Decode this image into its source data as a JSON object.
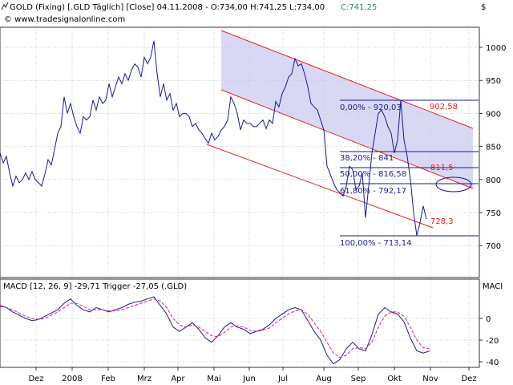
{
  "header": {
    "symbol_icon": "chart-line-icon",
    "title": "GOLD (Fixing) [.GLD  Täglich] [Close] 04.11.2008 - O:734,00 H:741,25 L:734,00",
    "close_label": "C:741,25",
    "website": "© www.tradesignalonline.com",
    "currency": "$",
    "close_color": "#2e8b57"
  },
  "chart_data": [
    {
      "type": "line",
      "name": "price-panel",
      "x_ticks": [
        "Dez",
        "2008",
        "Feb",
        "Mrz",
        "Apr",
        "Mai",
        "Jun",
        "Jul",
        "Aug",
        "Sep",
        "Okt",
        "Nov",
        "Dez"
      ],
      "y_ticks": [
        1000,
        950,
        900,
        850,
        800,
        750,
        700
      ],
      "ylim": [
        680,
        1040
      ],
      "grid": true,
      "line_color": "#1a1a8c",
      "channel_color": "#e62020",
      "fill_color": "#c8c8f0",
      "fib_color": "#1a1a8c",
      "series": [
        {
          "values": [
            [
              0,
              840
            ],
            [
              4,
              825
            ],
            [
              8,
              835
            ],
            [
              12,
              810
            ],
            [
              16,
              790
            ],
            [
              20,
              805
            ],
            [
              24,
              795
            ],
            [
              28,
              800
            ],
            [
              32,
              810
            ],
            [
              36,
              800
            ],
            [
              40,
              812
            ],
            [
              44,
              800
            ],
            [
              48,
              795
            ],
            [
              52,
              790
            ],
            [
              56,
              808
            ],
            [
              60,
              830
            ],
            [
              64,
              822
            ],
            [
              68,
              845
            ],
            [
              72,
              870
            ],
            [
              76,
              880
            ],
            [
              80,
              925
            ],
            [
              84,
              900
            ],
            [
              88,
              915
            ],
            [
              92,
              895
            ],
            [
              96,
              880
            ],
            [
              100,
              870
            ],
            [
              104,
              895
            ],
            [
              108,
              890
            ],
            [
              112,
              895
            ],
            [
              116,
              920
            ],
            [
              120,
              905
            ],
            [
              124,
              925
            ],
            [
              128,
              915
            ],
            [
              132,
              920
            ],
            [
              136,
              945
            ],
            [
              140,
              925
            ],
            [
              144,
              940
            ],
            [
              148,
              955
            ],
            [
              152,
              945
            ],
            [
              156,
              960
            ],
            [
              160,
              950
            ],
            [
              164,
              965
            ],
            [
              168,
              975
            ],
            [
              172,
              970
            ],
            [
              176,
              955
            ],
            [
              180,
              985
            ],
            [
              184,
              975
            ],
            [
              188,
              985
            ],
            [
              192,
              1010
            ],
            [
              196,
              960
            ],
            [
              200,
              925
            ],
            [
              204,
              945
            ],
            [
              208,
              920
            ],
            [
              212,
              930
            ],
            [
              216,
              905
            ],
            [
              220,
              915
            ],
            [
              224,
              895
            ],
            [
              228,
              900
            ],
            [
              232,
              900
            ],
            [
              236,
              895
            ],
            [
              240,
              880
            ],
            [
              244,
              885
            ],
            [
              248,
              875
            ],
            [
              252,
              870
            ],
            [
              256,
              862
            ],
            [
              260,
              855
            ],
            [
              264,
              870
            ],
            [
              268,
              860
            ],
            [
              272,
              865
            ],
            [
              276,
              875
            ],
            [
              280,
              880
            ],
            [
              284,
              890
            ],
            [
              288,
              925
            ],
            [
              292,
              915
            ],
            [
              296,
              900
            ],
            [
              300,
              875
            ],
            [
              304,
              890
            ],
            [
              308,
              885
            ],
            [
              312,
              885
            ],
            [
              316,
              880
            ],
            [
              320,
              880
            ],
            [
              324,
              885
            ],
            [
              328,
              890
            ],
            [
              332,
              877
            ],
            [
              336,
              890
            ],
            [
              340,
              885
            ],
            [
              344,
              918
            ],
            [
              348,
              910
            ],
            [
              352,
              930
            ],
            [
              356,
              940
            ],
            [
              360,
              955
            ],
            [
              364,
              960
            ],
            [
              368,
              983
            ],
            [
              372,
              972
            ],
            [
              376,
              975
            ],
            [
              380,
              960
            ],
            [
              384,
              940
            ],
            [
              388,
              915
            ],
            [
              392,
              910
            ],
            [
              396,
              905
            ],
            [
              400,
              890
            ],
            [
              404,
              875
            ],
            [
              408,
              820
            ],
            [
              412,
              808
            ],
            [
              416,
              795
            ],
            [
              420,
              785
            ],
            [
              424,
              780
            ],
            [
              428,
              775
            ],
            [
              432,
              790
            ],
            [
              436,
              820
            ],
            [
              440,
              815
            ],
            [
              444,
              785
            ],
            [
              448,
              790
            ],
            [
              452,
              810
            ],
            [
              456,
              742
            ],
            [
              460,
              790
            ],
            [
              464,
              840
            ],
            [
              468,
              870
            ],
            [
              472,
              900
            ],
            [
              476,
              905
            ],
            [
              480,
              895
            ],
            [
              484,
              880
            ],
            [
              488,
              870
            ],
            [
              492,
              840
            ],
            [
              496,
              860
            ],
            [
              500,
              920
            ],
            [
              504,
              860
            ],
            [
              508,
              835
            ],
            [
              512,
              800
            ],
            [
              516,
              750
            ],
            [
              520,
              715
            ],
            [
              524,
              735
            ],
            [
              528,
              760
            ],
            [
              532,
              740
            ]
          ]
        }
      ],
      "fib_levels": [
        {
          "label": "0,00% - 920,03",
          "value": 920.03
        },
        {
          "label": "38,20% - 841",
          "value": 841
        },
        {
          "label": "50,00% - 816,58",
          "value": 816.58
        },
        {
          "label": "61,80% - 792,17",
          "value": 792.17
        },
        {
          "label": "100,00% - 713,14",
          "value": 713.14
        }
      ],
      "channel_labels": [
        {
          "label": "902,58",
          "value": 902.58
        },
        {
          "label": "811,5",
          "value": 811.5
        },
        {
          "label": "728,3",
          "value": 728.3
        }
      ]
    },
    {
      "type": "line",
      "name": "macd-panel",
      "title": "MACD [12, 26, 9] -29,71 Trigger -27,05 (.GLD)",
      "right_label": "MACI",
      "y_ticks": [
        0,
        -20,
        -40
      ],
      "ylim": [
        -48,
        22
      ],
      "grid": true,
      "series": [
        {
          "name": "MACD",
          "color": "#1a1a8c",
          "values": [
            [
              0,
              12
            ],
            [
              8,
              10
            ],
            [
              16,
              6
            ],
            [
              24,
              3
            ],
            [
              32,
              0
            ],
            [
              40,
              -2
            ],
            [
              48,
              -1
            ],
            [
              56,
              2
            ],
            [
              64,
              5
            ],
            [
              72,
              8
            ],
            [
              80,
              14
            ],
            [
              88,
              18
            ],
            [
              96,
              12
            ],
            [
              104,
              8
            ],
            [
              112,
              6
            ],
            [
              120,
              10
            ],
            [
              128,
              8
            ],
            [
              136,
              6
            ],
            [
              144,
              8
            ],
            [
              152,
              10
            ],
            [
              160,
              13
            ],
            [
              168,
              15
            ],
            [
              176,
              16
            ],
            [
              184,
              18
            ],
            [
              192,
              20
            ],
            [
              200,
              12
            ],
            [
              208,
              4
            ],
            [
              216,
              -8
            ],
            [
              224,
              -12
            ],
            [
              232,
              -8
            ],
            [
              240,
              -4
            ],
            [
              248,
              -10
            ],
            [
              256,
              -18
            ],
            [
              264,
              -22
            ],
            [
              272,
              -16
            ],
            [
              280,
              -8
            ],
            [
              288,
              -4
            ],
            [
              296,
              -8
            ],
            [
              304,
              -10
            ],
            [
              312,
              -14
            ],
            [
              320,
              -12
            ],
            [
              328,
              -10
            ],
            [
              336,
              -6
            ],
            [
              344,
              0
            ],
            [
              352,
              4
            ],
            [
              360,
              8
            ],
            [
              368,
              10
            ],
            [
              376,
              8
            ],
            [
              384,
              -2
            ],
            [
              392,
              -12
            ],
            [
              400,
              -20
            ],
            [
              408,
              -34
            ],
            [
              416,
              -42
            ],
            [
              424,
              -38
            ],
            [
              432,
              -28
            ],
            [
              440,
              -22
            ],
            [
              448,
              -28
            ],
            [
              456,
              -30
            ],
            [
              464,
              -15
            ],
            [
              472,
              4
            ],
            [
              480,
              10
            ],
            [
              488,
              6
            ],
            [
              496,
              4
            ],
            [
              504,
              -3
            ],
            [
              512,
              -18
            ],
            [
              520,
              -30
            ],
            [
              528,
              -32
            ],
            [
              536,
              -30
            ]
          ]
        },
        {
          "name": "Trigger",
          "color": "#cc2288",
          "values": [
            [
              0,
              11
            ],
            [
              8,
              10
            ],
            [
              16,
              8
            ],
            [
              24,
              5
            ],
            [
              32,
              2
            ],
            [
              40,
              0
            ],
            [
              48,
              -1
            ],
            [
              56,
              0
            ],
            [
              64,
              3
            ],
            [
              72,
              6
            ],
            [
              80,
              10
            ],
            [
              88,
              14
            ],
            [
              96,
              14
            ],
            [
              104,
              11
            ],
            [
              112,
              8
            ],
            [
              120,
              8
            ],
            [
              128,
              8
            ],
            [
              136,
              7
            ],
            [
              144,
              7
            ],
            [
              152,
              8
            ],
            [
              160,
              10
            ],
            [
              168,
              12
            ],
            [
              176,
              14
            ],
            [
              184,
              16
            ],
            [
              192,
              18
            ],
            [
              200,
              16
            ],
            [
              208,
              10
            ],
            [
              216,
              0
            ],
            [
              224,
              -6
            ],
            [
              232,
              -8
            ],
            [
              240,
              -6
            ],
            [
              248,
              -8
            ],
            [
              256,
              -12
            ],
            [
              264,
              -16
            ],
            [
              272,
              -17
            ],
            [
              280,
              -13
            ],
            [
              288,
              -8
            ],
            [
              296,
              -7
            ],
            [
              304,
              -8
            ],
            [
              312,
              -11
            ],
            [
              320,
              -12
            ],
            [
              328,
              -11
            ],
            [
              336,
              -9
            ],
            [
              344,
              -4
            ],
            [
              352,
              0
            ],
            [
              360,
              4
            ],
            [
              368,
              7
            ],
            [
              376,
              8
            ],
            [
              384,
              4
            ],
            [
              392,
              -4
            ],
            [
              400,
              -12
            ],
            [
              408,
              -22
            ],
            [
              416,
              -32
            ],
            [
              424,
              -36
            ],
            [
              432,
              -34
            ],
            [
              440,
              -28
            ],
            [
              448,
              -27
            ],
            [
              456,
              -28
            ],
            [
              464,
              -22
            ],
            [
              472,
              -8
            ],
            [
              480,
              2
            ],
            [
              488,
              6
            ],
            [
              496,
              6
            ],
            [
              504,
              2
            ],
            [
              512,
              -8
            ],
            [
              520,
              -20
            ],
            [
              528,
              -27
            ],
            [
              536,
              -28
            ]
          ]
        }
      ]
    }
  ]
}
